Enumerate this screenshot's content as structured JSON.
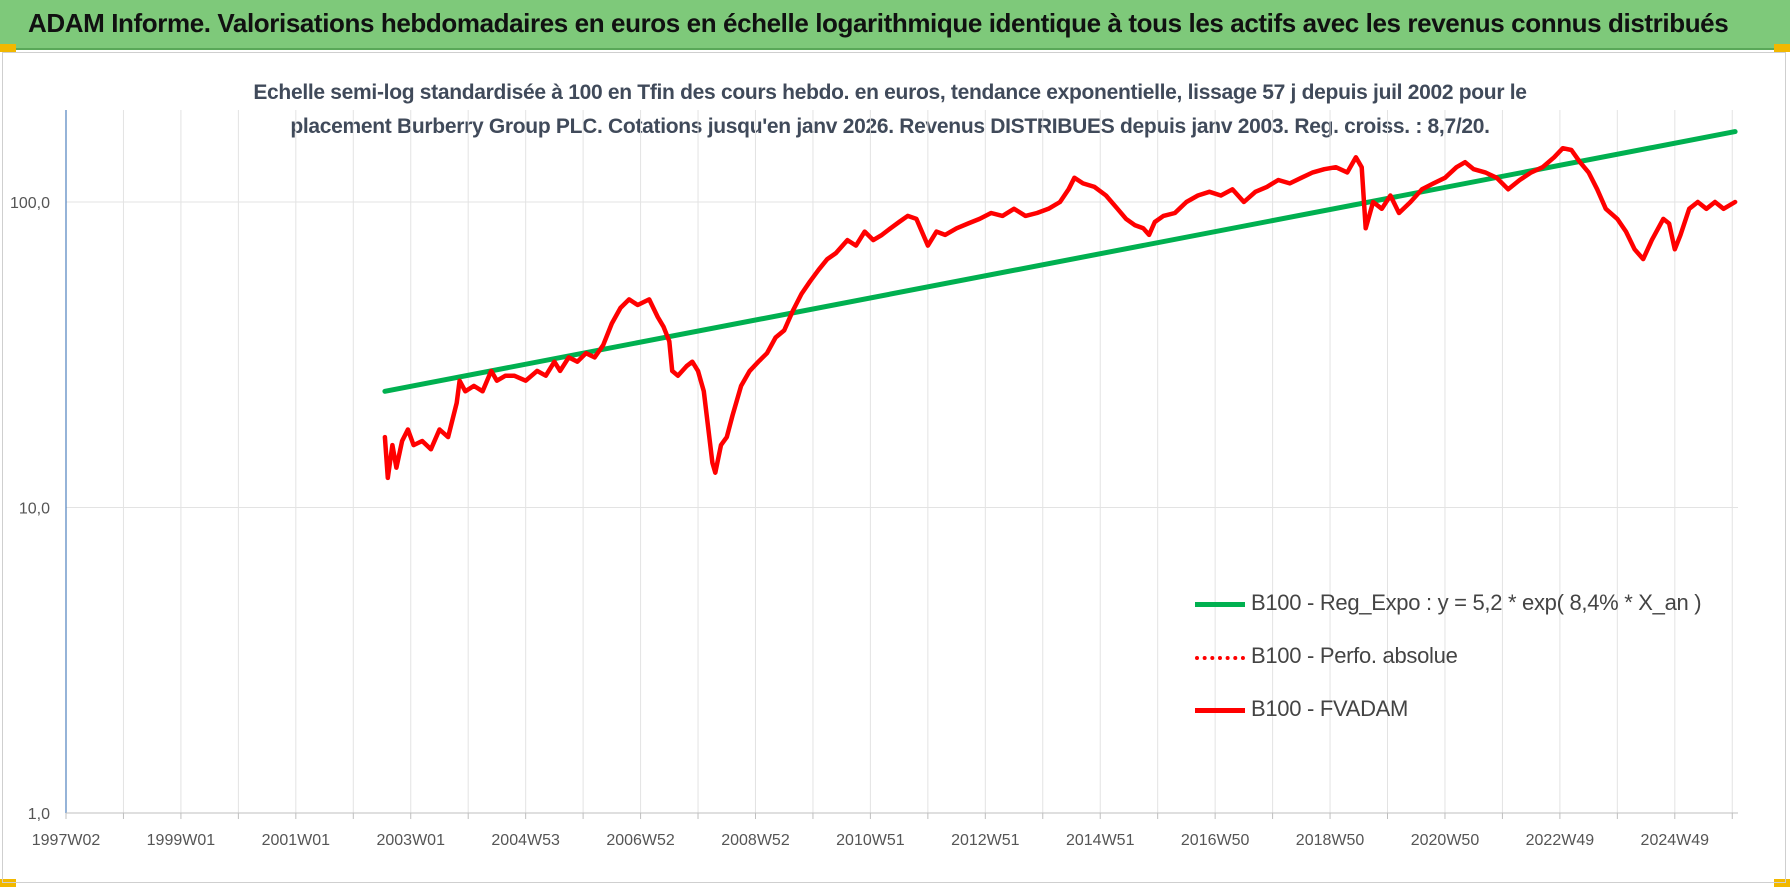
{
  "header": {
    "title": "ADAM Informe. Valorisations hebdomadaires en euros en échelle logarithmique identique à tous les actifs avec les revenus connus distribués"
  },
  "colors": {
    "header_bg": "#7ec97a",
    "corner_accent": "#f2b800",
    "regression": "#00b050",
    "fvadam": "#ff0000",
    "perf_absolue": "#ff0000",
    "axis": "#4f81bd",
    "grid": "#e3e3e3"
  },
  "chart_data": {
    "type": "line",
    "title": "Echelle semi-log standardisée à 100 en Tfin des cours hebdo. en euros, tendance exponentielle, lissage 57 j depuis juil 2002 pour le placement Burberry Group PLC. Cotations jusqu'en janv 2026. Revenus DISTRIBUES depuis janv 2003. Reg. croiss. : 8,7/20.",
    "title_lines": [
      "Echelle semi-log standardisée à 100 en Tfin des cours hebdo. en euros, tendance exponentielle, lissage 57 j depuis juil 2002 pour le",
      "placement Burberry Group PLC. Cotations jusqu'en janv 2026. Revenus DISTRIBUES depuis janv 2003. Reg. croiss. : 8,7/20."
    ],
    "y_scale": "log",
    "ylim": [
      1,
      200
    ],
    "xlim": [
      1997.0,
      2026.1
    ],
    "y_ticks": [
      1,
      10,
      100
    ],
    "y_tick_labels": [
      "1,0",
      "10,0",
      "100,0"
    ],
    "x_ticks": [
      1997.0,
      1999.0,
      2001.0,
      2003.0,
      2005.0,
      2007.0,
      2009.0,
      2011.0,
      2013.0,
      2015.0,
      2017.0,
      2019.0,
      2021.0,
      2023.0,
      2025.0
    ],
    "x_tick_labels": [
      "1997W02",
      "1999W01",
      "2001W01",
      "2003W01",
      "2004W53",
      "2006W52",
      "2008W52",
      "2010W51",
      "2012W51",
      "2014W51",
      "2016W50",
      "2018W50",
      "2020W50",
      "2022W49",
      "2024W49"
    ],
    "grid": {
      "vertical": true,
      "horizontal": true
    },
    "legend_position": "lower-right",
    "series": [
      {
        "name": "B100 - Reg_Expo : y = 5,2 * exp( 8,4% *  X_an )",
        "color": "#00b050",
        "style": "solid",
        "points": [
          [
            2002.55,
            24
          ],
          [
            2026.05,
            170
          ]
        ]
      },
      {
        "name": "B100 - Perfo. absolue",
        "color": "#ff0000",
        "style": "dotted",
        "points": []
      },
      {
        "name": "B100 - FVADAM",
        "color": "#ff0000",
        "style": "solid",
        "points": [
          [
            2002.55,
            17
          ],
          [
            2002.6,
            12.5
          ],
          [
            2002.68,
            16
          ],
          [
            2002.75,
            13.5
          ],
          [
            2002.85,
            16.5
          ],
          [
            2002.95,
            18
          ],
          [
            2003.05,
            16
          ],
          [
            2003.2,
            16.5
          ],
          [
            2003.35,
            15.5
          ],
          [
            2003.5,
            18
          ],
          [
            2003.65,
            17
          ],
          [
            2003.8,
            22
          ],
          [
            2003.85,
            26
          ],
          [
            2003.95,
            24
          ],
          [
            2004.1,
            25
          ],
          [
            2004.25,
            24
          ],
          [
            2004.4,
            28
          ],
          [
            2004.5,
            26
          ],
          [
            2004.65,
            27
          ],
          [
            2004.8,
            27
          ],
          [
            2005.0,
            26
          ],
          [
            2005.2,
            28
          ],
          [
            2005.35,
            27
          ],
          [
            2005.5,
            30
          ],
          [
            2005.6,
            28
          ],
          [
            2005.75,
            31
          ],
          [
            2005.9,
            30
          ],
          [
            2006.05,
            32
          ],
          [
            2006.2,
            31
          ],
          [
            2006.35,
            34
          ],
          [
            2006.5,
            40
          ],
          [
            2006.65,
            45
          ],
          [
            2006.8,
            48
          ],
          [
            2006.95,
            46
          ],
          [
            2007.15,
            48
          ],
          [
            2007.3,
            42
          ],
          [
            2007.4,
            39
          ],
          [
            2007.5,
            35
          ],
          [
            2007.55,
            28
          ],
          [
            2007.65,
            27
          ],
          [
            2007.8,
            29
          ],
          [
            2007.9,
            30
          ],
          [
            2008.0,
            28
          ],
          [
            2008.1,
            24
          ],
          [
            2008.18,
            18
          ],
          [
            2008.25,
            14
          ],
          [
            2008.3,
            13
          ],
          [
            2008.4,
            16
          ],
          [
            2008.5,
            17
          ],
          [
            2008.6,
            20
          ],
          [
            2008.75,
            25
          ],
          [
            2008.9,
            28
          ],
          [
            2009.05,
            30
          ],
          [
            2009.2,
            32
          ],
          [
            2009.35,
            36
          ],
          [
            2009.5,
            38
          ],
          [
            2009.65,
            44
          ],
          [
            2009.8,
            50
          ],
          [
            2009.95,
            55
          ],
          [
            2010.1,
            60
          ],
          [
            2010.25,
            65
          ],
          [
            2010.4,
            68
          ],
          [
            2010.6,
            75
          ],
          [
            2010.75,
            72
          ],
          [
            2010.9,
            80
          ],
          [
            2011.05,
            75
          ],
          [
            2011.2,
            78
          ],
          [
            2011.35,
            82
          ],
          [
            2011.5,
            86
          ],
          [
            2011.65,
            90
          ],
          [
            2011.8,
            88
          ],
          [
            2012.0,
            72
          ],
          [
            2012.15,
            80
          ],
          [
            2012.3,
            78
          ],
          [
            2012.5,
            82
          ],
          [
            2012.7,
            85
          ],
          [
            2012.9,
            88
          ],
          [
            2013.1,
            92
          ],
          [
            2013.3,
            90
          ],
          [
            2013.5,
            95
          ],
          [
            2013.7,
            90
          ],
          [
            2013.9,
            92
          ],
          [
            2014.1,
            95
          ],
          [
            2014.3,
            100
          ],
          [
            2014.45,
            110
          ],
          [
            2014.55,
            120
          ],
          [
            2014.7,
            115
          ],
          [
            2014.9,
            112
          ],
          [
            2015.1,
            105
          ],
          [
            2015.3,
            95
          ],
          [
            2015.45,
            88
          ],
          [
            2015.6,
            84
          ],
          [
            2015.75,
            82
          ],
          [
            2015.85,
            78
          ],
          [
            2015.95,
            86
          ],
          [
            2016.1,
            90
          ],
          [
            2016.3,
            92
          ],
          [
            2016.5,
            100
          ],
          [
            2016.7,
            105
          ],
          [
            2016.9,
            108
          ],
          [
            2017.1,
            105
          ],
          [
            2017.3,
            110
          ],
          [
            2017.5,
            100
          ],
          [
            2017.7,
            108
          ],
          [
            2017.9,
            112
          ],
          [
            2018.1,
            118
          ],
          [
            2018.3,
            115
          ],
          [
            2018.5,
            120
          ],
          [
            2018.7,
            125
          ],
          [
            2018.9,
            128
          ],
          [
            2019.1,
            130
          ],
          [
            2019.3,
            125
          ],
          [
            2019.45,
            140
          ],
          [
            2019.55,
            130
          ],
          [
            2019.62,
            82
          ],
          [
            2019.75,
            100
          ],
          [
            2019.9,
            95
          ],
          [
            2020.05,
            105
          ],
          [
            2020.2,
            92
          ],
          [
            2020.4,
            100
          ],
          [
            2020.6,
            110
          ],
          [
            2020.8,
            115
          ],
          [
            2021.0,
            120
          ],
          [
            2021.2,
            130
          ],
          [
            2021.35,
            135
          ],
          [
            2021.5,
            128
          ],
          [
            2021.7,
            125
          ],
          [
            2021.9,
            120
          ],
          [
            2022.1,
            110
          ],
          [
            2022.3,
            118
          ],
          [
            2022.5,
            125
          ],
          [
            2022.7,
            130
          ],
          [
            2022.9,
            140
          ],
          [
            2023.05,
            150
          ],
          [
            2023.2,
            148
          ],
          [
            2023.35,
            135
          ],
          [
            2023.5,
            125
          ],
          [
            2023.65,
            110
          ],
          [
            2023.8,
            95
          ],
          [
            2024.0,
            88
          ],
          [
            2024.15,
            80
          ],
          [
            2024.3,
            70
          ],
          [
            2024.45,
            65
          ],
          [
            2024.6,
            75
          ],
          [
            2024.8,
            88
          ],
          [
            2024.9,
            85
          ],
          [
            2025.0,
            70
          ],
          [
            2025.1,
            78
          ],
          [
            2025.25,
            95
          ],
          [
            2025.4,
            100
          ],
          [
            2025.55,
            95
          ],
          [
            2025.7,
            100
          ],
          [
            2025.85,
            95
          ],
          [
            2026.05,
            100
          ]
        ]
      }
    ]
  }
}
